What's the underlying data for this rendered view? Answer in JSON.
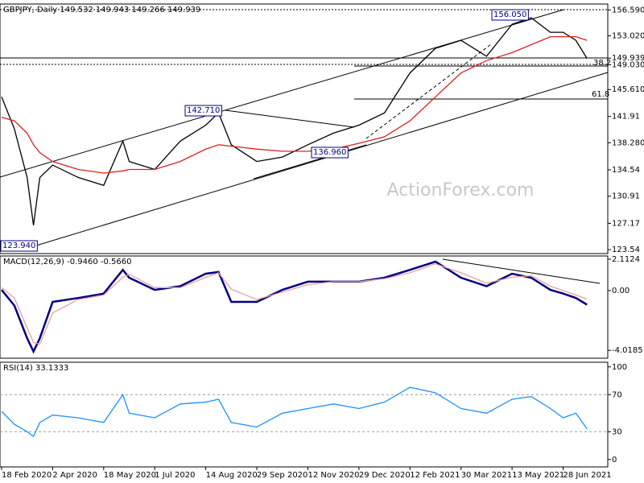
{
  "chart_data": [
    {
      "type": "line",
      "title": "GBPJPY, Daily  149.532 149.943 149.266 149.939",
      "x": [
        0,
        8,
        16,
        20,
        24,
        32,
        48,
        64,
        76,
        80,
        96,
        112,
        128,
        136,
        144,
        160,
        176,
        192,
        208,
        224,
        240,
        256,
        272,
        288,
        304,
        320,
        332,
        344,
        352,
        360,
        367
      ],
      "series": [
        {
          "color": "#000000",
          "values": [
            144.6,
            140.2,
            133.5,
            126.9,
            133.5,
            135.2,
            133.5,
            132.4,
            138.5,
            135.7,
            134.6,
            138.5,
            140.7,
            142.4,
            138,
            135.7,
            136.3,
            138,
            139.6,
            140.7,
            142.4,
            147.9,
            151.3,
            152.4,
            150.2,
            154.6,
            155.5,
            153.5,
            153.5,
            152.4,
            149.9
          ]
        },
        {
          "color": "#e02020",
          "values": [
            141.8,
            141.3,
            139.6,
            138,
            136.9,
            135.7,
            134.6,
            134.1,
            134.4,
            134.6,
            134.6,
            135.7,
            137.4,
            138,
            137.8,
            137.4,
            137.1,
            137.1,
            137.4,
            138.2,
            139.1,
            141.3,
            144.6,
            147.9,
            149.6,
            150.7,
            151.8,
            152.9,
            152.9,
            152.9,
            152.4
          ]
        }
      ],
      "xlim": [
        -1,
        380
      ],
      "ylim": [
        123.0,
        157.4
      ],
      "yticks": [
        {
          "value": 156.59,
          "label": "156.590"
        },
        {
          "value": 153.02,
          "label": "153.020"
        },
        149.939,
        {
          "value": 149.03,
          "label": "149.030"
        },
        {
          "value": 145.61,
          "label": "145.610"
        },
        141.91,
        {
          "value": 138.28,
          "label": "138.280"
        },
        134.54,
        130.91,
        127.17,
        123.54
      ],
      "annotations": [
        "156.050",
        "142.710",
        "136.960",
        "123.940",
        "38.2",
        "61.8"
      ],
      "watermark": "ActionForex.com"
    },
    {
      "type": "line",
      "title": "MACD(12,26,9) -0.9460 -0.5660",
      "x": [
        0,
        8,
        16,
        20,
        24,
        32,
        48,
        64,
        76,
        80,
        96,
        112,
        128,
        136,
        144,
        160,
        176,
        192,
        208,
        224,
        240,
        256,
        272,
        288,
        304,
        320,
        332,
        344,
        352,
        360,
        367
      ],
      "series": [
        {
          "color": "#000080",
          "values": [
            0.05,
            -1.0,
            -3.2,
            -4.1,
            -3.2,
            -0.76,
            -0.5,
            -0.2,
            1.4,
            0.87,
            0.05,
            0.3,
            1.14,
            1.25,
            -0.76,
            -0.76,
            0.05,
            0.6,
            0.6,
            0.6,
            0.87,
            1.4,
            1.95,
            0.87,
            0.3,
            1.14,
            0.87,
            0.05,
            -0.2,
            -0.5,
            -0.946
          ]
        },
        {
          "color": "#e8a0a0",
          "values": [
            0.2,
            -0.5,
            -2.5,
            -3.5,
            -3.6,
            -1.5,
            -0.6,
            -0.3,
            0.9,
            1.1,
            0.2,
            0.2,
            0.9,
            1.2,
            0.1,
            -0.6,
            -0.1,
            0.4,
            0.6,
            0.6,
            0.8,
            1.2,
            1.8,
            1.2,
            0.5,
            0.9,
            1.0,
            0.3,
            0.0,
            -0.3,
            -0.566
          ]
        }
      ],
      "xlim": [
        -1,
        380
      ],
      "ylim": [
        -4.55,
        2.33
      ],
      "yticks": [
        2.1124,
        {
          "value": 0,
          "label": "0.00"
        },
        -4.0185
      ]
    },
    {
      "type": "line",
      "title": "RSI(14) 33.1333",
      "x": [
        0,
        8,
        16,
        20,
        24,
        32,
        48,
        64,
        76,
        80,
        96,
        112,
        128,
        136,
        144,
        160,
        176,
        192,
        208,
        224,
        240,
        256,
        272,
        288,
        304,
        320,
        332,
        344,
        352,
        360,
        367
      ],
      "series": [
        {
          "color": "#1e90ff",
          "values": [
            52,
            38,
            30,
            25,
            40,
            48,
            45,
            40,
            70,
            50,
            45,
            60,
            62,
            65,
            40,
            35,
            50,
            55,
            60,
            55,
            62,
            78,
            72,
            55,
            50,
            65,
            68,
            55,
            45,
            50,
            33.1333
          ]
        }
      ],
      "xlim": [
        -1,
        380
      ],
      "ylim": [
        -8,
        105
      ],
      "yticks": [
        100,
        70,
        30,
        0
      ],
      "xticks": [
        {
          "value": 0,
          "label": "18 Feb 2020"
        },
        {
          "value": 32,
          "label": "2 Apr 2020"
        },
        {
          "value": 64,
          "label": "18 May 2020"
        },
        {
          "value": 96,
          "label": "1 Jul 2020"
        },
        {
          "value": 128,
          "label": "14 Aug 2020"
        },
        {
          "value": 160,
          "label": "29 Sep 2020"
        },
        {
          "value": 192,
          "label": "12 Nov 2020"
        },
        {
          "value": 224,
          "label": "29 Dec 2020"
        },
        {
          "value": 256,
          "label": "12 Feb 2021"
        },
        {
          "value": 288,
          "label": "30 Mar 2021"
        },
        {
          "value": 320,
          "label": "13 May 2021"
        },
        {
          "value": 352,
          "label": "28 Jun 2021"
        }
      ]
    }
  ]
}
